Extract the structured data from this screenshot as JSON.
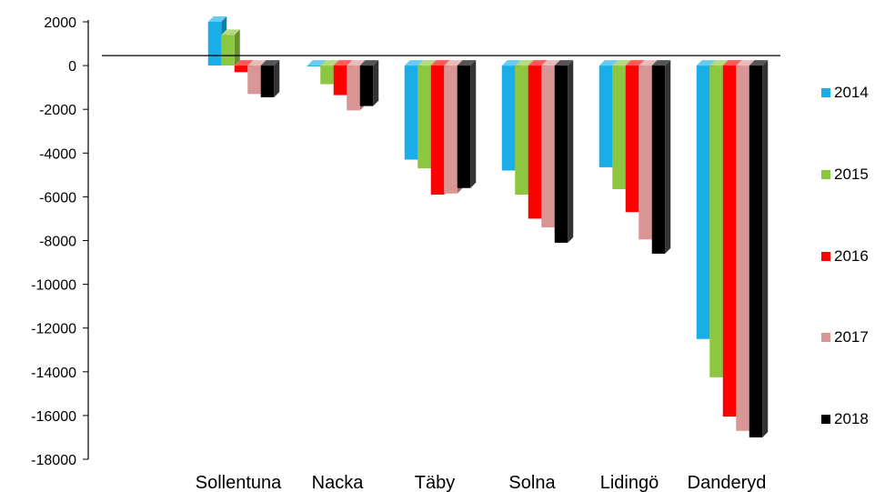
{
  "chart_data": {
    "type": "bar",
    "title": "",
    "xlabel": "",
    "ylabel": "",
    "ylim": [
      -18000,
      2000
    ],
    "yticks": [
      2000,
      0,
      -2000,
      -4000,
      -6000,
      -8000,
      -10000,
      -12000,
      -14000,
      -16000,
      -18000
    ],
    "categories": [
      "Sollentuna",
      "Nacka",
      "Täby",
      "Solna",
      "Lidingö",
      "Danderyd"
    ],
    "series": [
      {
        "name": "2014",
        "color": "#1aaee8",
        "values": [
          2000,
          0,
          -4300,
          -4800,
          -4650,
          -12500
        ]
      },
      {
        "name": "2015",
        "color": "#8dc63f",
        "values": [
          1400,
          -850,
          -4700,
          -5900,
          -5650,
          -14250
        ]
      },
      {
        "name": "2016",
        "color": "#ff0000",
        "values": [
          -300,
          -1350,
          -5900,
          -7000,
          -6700,
          -16050
        ]
      },
      {
        "name": "2017",
        "color": "#d99694",
        "values": [
          -1300,
          -2050,
          -5850,
          -7400,
          -7950,
          -16700
        ]
      },
      {
        "name": "2018",
        "color": "#000000",
        "values": [
          -1450,
          -1850,
          -5600,
          -8100,
          -8600,
          -17000
        ]
      }
    ],
    "legend_position": "right",
    "grid": false,
    "style": "3d"
  }
}
